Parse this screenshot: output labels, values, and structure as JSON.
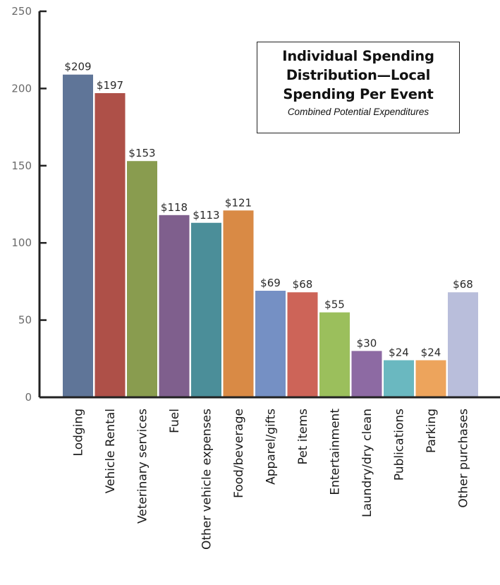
{
  "chart_data": {
    "type": "bar",
    "title_lines": [
      "Individual Spending",
      "Distribution—Local",
      "Spending Per Event"
    ],
    "subtitle": "Combined Potential Expenditures",
    "categories": [
      "Lodging",
      "Vehicle Rental",
      "Veterinary services",
      "Fuel",
      "Other vehicle expenses",
      "Food/beverage",
      "Apparel/gifts",
      "Pet items",
      "Entertainment",
      "Laundry/dry clean",
      "Publications",
      "Parking",
      "Other purchases"
    ],
    "values": [
      209,
      197,
      153,
      118,
      113,
      121,
      69,
      68,
      55,
      30,
      24,
      24,
      68
    ],
    "data_labels": [
      "$209",
      "$197",
      "$153",
      "$118",
      "$113",
      "$121",
      "$69",
      "$68",
      "$55",
      "$30",
      "$24",
      "$24",
      "$68"
    ],
    "colors": [
      "#5f7598",
      "#ae5048",
      "#899c4f",
      "#7f5f8d",
      "#4b8e99",
      "#d98a45",
      "#7590c4",
      "#cd6458",
      "#9bbf5c",
      "#8d6aa3",
      "#6ab8c0",
      "#eda45c",
      "#b9bedb"
    ],
    "y_ticks": [
      "0",
      "50",
      "100",
      "150",
      "200",
      "250"
    ],
    "ylim": [
      0,
      250
    ],
    "xlabel": "",
    "ylabel": "",
    "grid": false,
    "legend": "none"
  }
}
